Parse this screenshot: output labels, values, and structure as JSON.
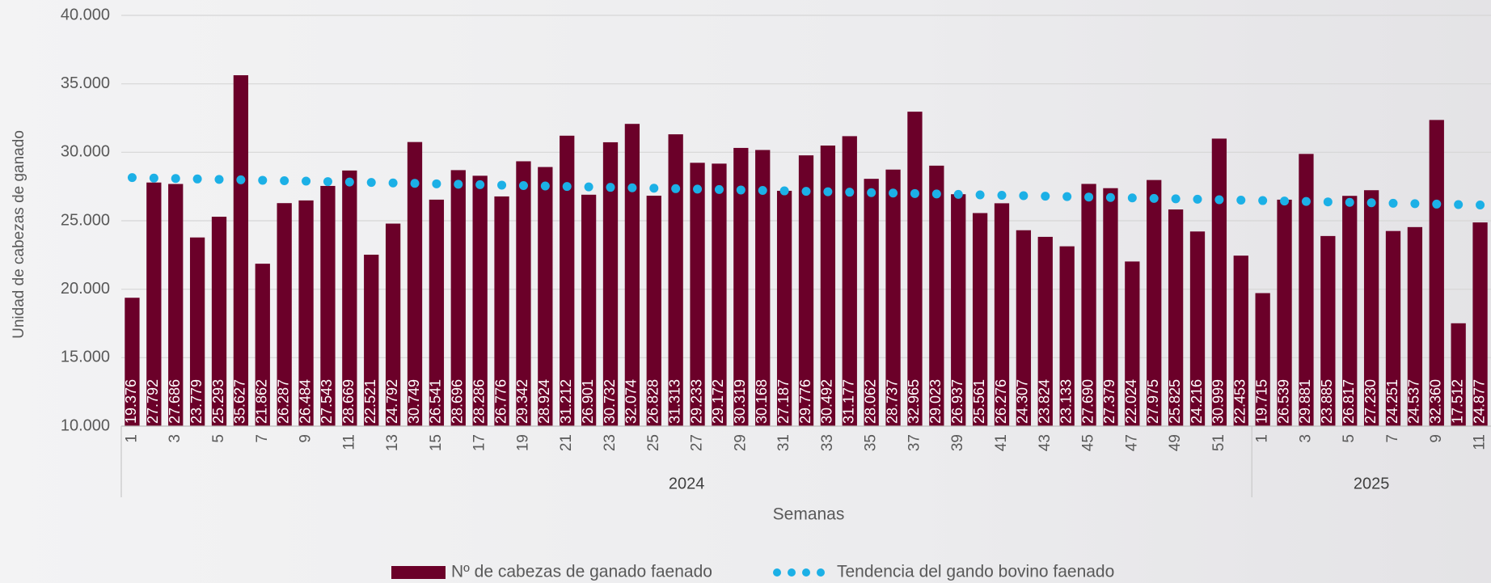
{
  "chart_data": {
    "type": "bar",
    "y_axis_label": "Unidad de cabezas de ganado",
    "x_axis_label": "Semanas",
    "categories": [
      "1",
      null,
      "3",
      null,
      "5",
      null,
      "7",
      null,
      "9",
      null,
      "11",
      null,
      "13",
      null,
      "15",
      null,
      "17",
      null,
      "19",
      null,
      "21",
      null,
      "23",
      null,
      "25",
      null,
      "27",
      null,
      "29",
      null,
      "31",
      null,
      "33",
      null,
      "35",
      null,
      "37",
      null,
      "39",
      null,
      "41",
      null,
      "43",
      null,
      "45",
      null,
      "47",
      null,
      "49",
      null,
      "51",
      null,
      "1",
      null,
      "3",
      null,
      "5",
      null,
      "7",
      null,
      "9",
      null,
      "11"
    ],
    "groups": [
      {
        "label": "2024",
        "count": 52
      },
      {
        "label": "2025",
        "count": 11
      }
    ],
    "series": [
      {
        "name": "Nº de  cabezas de ganado faenado",
        "type": "bar",
        "color": "#6b0029",
        "values": [
          19376,
          27792,
          27686,
          23779,
          25293,
          35627,
          21862,
          26287,
          26484,
          27543,
          28669,
          22521,
          24792,
          30749,
          26541,
          28696,
          28286,
          26776,
          29342,
          28924,
          31212,
          26901,
          30732,
          32074,
          26828,
          31313,
          29233,
          29172,
          30319,
          30168,
          27187,
          29776,
          30492,
          31177,
          28062,
          28737,
          32965,
          29023,
          26937,
          25561,
          26276,
          24307,
          23824,
          23133,
          27690,
          27379,
          22024,
          27975,
          25825,
          24216,
          30999,
          22453,
          19715,
          26539,
          29881,
          23885,
          26817,
          27230,
          24251,
          24537,
          32360,
          17512,
          24877
        ],
        "value_labels": [
          "19.376",
          "27.792",
          "27.686",
          "23.779",
          "25.293",
          "35.627",
          "21.862",
          "26.287",
          "26.484",
          "27.543",
          "28.669",
          "22.521",
          "24.792",
          "30.749",
          "26.541",
          "28.696",
          "28.286",
          "26.776",
          "29.342",
          "28.924",
          "31.212",
          "26.901",
          "30.732",
          "32.074",
          "26.828",
          "31.313",
          "29.233",
          "29.172",
          "30.319",
          "30.168",
          "27.187",
          "29.776",
          "30.492",
          "31.177",
          "28.062",
          "28.737",
          "32.965",
          "29.023",
          "26.937",
          "25.561",
          "26.276",
          "24.307",
          "23.824",
          "23.133",
          "27.690",
          "27.379",
          "22.024",
          "27.975",
          "25.825",
          "24.216",
          "30.999",
          "22.453",
          "19.715",
          "26.539",
          "29.881",
          "23.885",
          "26.817",
          "27.230",
          "24.251",
          "24.537",
          "32.360",
          "17.512",
          "24.877"
        ]
      },
      {
        "name": "Tendencia del gando bovino faenado",
        "type": "dots",
        "color": "#1cb0e6",
        "values": [
          28150,
          28118,
          28085,
          28053,
          28021,
          27989,
          27956,
          27924,
          27892,
          27860,
          27827,
          27795,
          27763,
          27731,
          27698,
          27666,
          27634,
          27602,
          27569,
          27537,
          27505,
          27473,
          27440,
          27408,
          27376,
          27344,
          27311,
          27279,
          27247,
          27215,
          27182,
          27150,
          27118,
          27086,
          27053,
          27021,
          26989,
          26957,
          26924,
          26892,
          26860,
          26828,
          26795,
          26763,
          26731,
          26699,
          26666,
          26634,
          26602,
          26570,
          26537,
          26505,
          26473,
          26441,
          26408,
          26376,
          26344,
          26312,
          26279,
          26247,
          26215,
          26183,
          26150
        ]
      }
    ],
    "ylim": [
      10000,
      40000
    ],
    "yticks": [
      {
        "value": 10000,
        "label": "10.000"
      },
      {
        "value": 15000,
        "label": "15.000"
      },
      {
        "value": 20000,
        "label": "20.000"
      },
      {
        "value": 25000,
        "label": "25.000"
      },
      {
        "value": 30000,
        "label": "30.000"
      },
      {
        "value": 35000,
        "label": "35.000"
      },
      {
        "value": 40000,
        "label": "40.000"
      }
    ],
    "grid": true,
    "legend": "bottom"
  }
}
